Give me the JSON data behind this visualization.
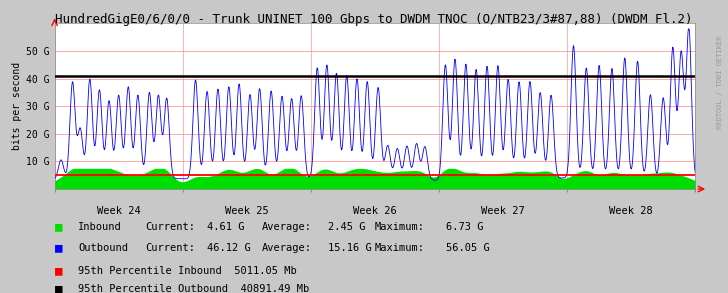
{
  "title": "HundredGigE0/6/0/0 - Trunk UNINET 100 Gbps to DWDM TNOC (O/NTB23/3#87,88) (DWDM Fl.2)",
  "ylabel": "bits per second",
  "background_color": "#c8c8c8",
  "plot_bg_color": "#ffffff",
  "grid_color_major": "#ff9999",
  "grid_color_minor": "#ffdddd",
  "ylim": [
    0,
    60000000000.0
  ],
  "ytick_vals": [
    0,
    10000000000.0,
    20000000000.0,
    30000000000.0,
    40000000000.0,
    50000000000.0
  ],
  "ytick_labels": [
    "",
    "10 G",
    "20 G",
    "30 G",
    "40 G",
    "50 G"
  ],
  "week_labels": [
    "Week 24",
    "Week 25",
    "Week 26",
    "Week 27",
    "Week 28"
  ],
  "inbound_color": "#00dd00",
  "outbound_color": "#0000ff",
  "percentile_inbound_color": "#ff0000",
  "percentile_outbound_color": "#000000",
  "percentile_inbound_gbps": 5.01105,
  "percentile_outbound_gbps": 40.89149,
  "percentile_inbound_label": "95th Percentile Inbound  5011.05 Mb",
  "percentile_outbound_label": "95th Percentile Outbound  40891.49 Mb",
  "inbound_current": "4.61 G",
  "inbound_average": "2.45 G",
  "inbound_maximum": "6.73 G",
  "outbound_current": "46.12 G",
  "outbound_average": "15.16 G",
  "outbound_maximum": "56.05 G",
  "watermark": "RRDTOOL / TOBI OETIKER",
  "num_points": 1400
}
